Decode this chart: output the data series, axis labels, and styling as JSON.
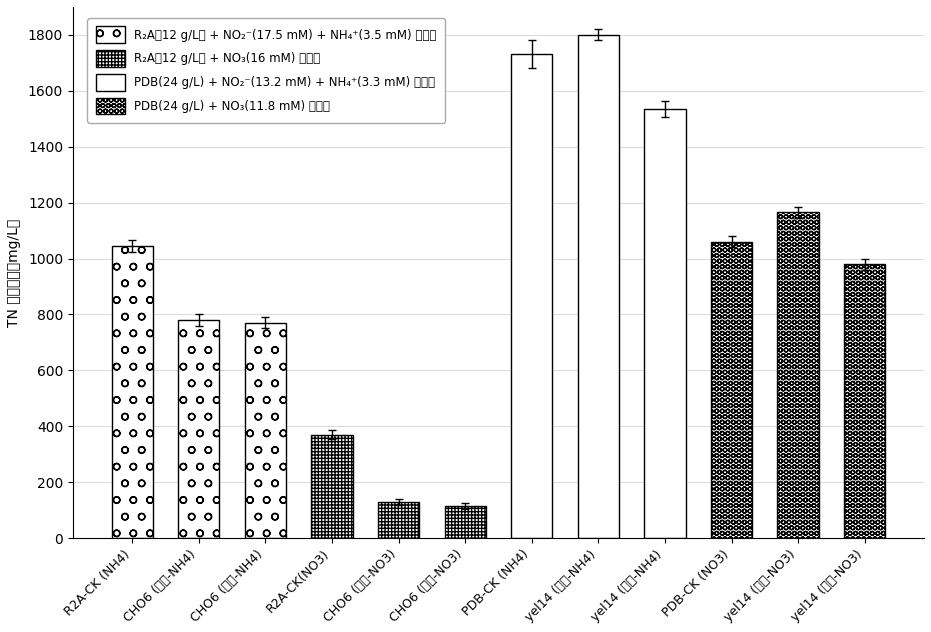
{
  "categories": [
    "R2A-CK (NH4)",
    "CHO6 (好氧-NH4)",
    "CHO6 (厌氧-NH4)",
    "R2A-CK(NO3)",
    "CHO6 (好氧-NO3)",
    "CHO6 (厌氧-NO3)",
    "PDB-CK (NH4)",
    "yel14 (好氧-NH4)",
    "yel14 (厌氧-NH4)",
    "PDB-CK (NO3)",
    "yel14 (好氧-NO3)",
    "yel14 (厌氧-NO3)"
  ],
  "values": [
    1045,
    780,
    770,
    370,
    130,
    115,
    1730,
    1800,
    1535,
    1060,
    1165,
    980
  ],
  "errors": [
    20,
    20,
    20,
    15,
    10,
    10,
    50,
    20,
    30,
    20,
    20,
    20
  ],
  "bar_types": [
    0,
    0,
    0,
    1,
    1,
    1,
    2,
    2,
    2,
    3,
    3,
    3
  ],
  "ylabel": "TN 的剩余量（mg/L）",
  "ylim": [
    0,
    1900
  ],
  "yticks": [
    0,
    200,
    400,
    600,
    800,
    1000,
    1200,
    1400,
    1600,
    1800
  ],
  "legend_labels": [
    "R₂A（12 g/L） + NO₂⁻(17.5 mM) + NH₄⁺(3.5 mM) 培养基",
    "R₂A（12 g/L） + NO₃(16 mM) 培养基",
    "PDB(24 g/L) + NO₂⁻(13.2 mM) + NH₄⁺(3.3 mM) 培养基",
    "PDB(24 g/L) + NO₃(11.8 mM) 培养基"
  ],
  "background_color": "#ffffff"
}
